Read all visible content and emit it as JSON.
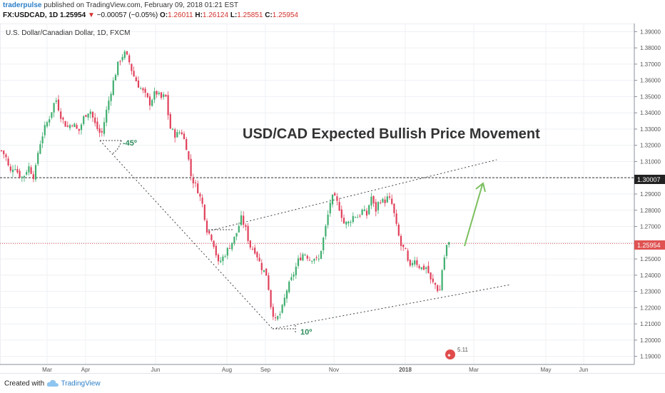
{
  "header": {
    "author": "traderpulse",
    "published_text": "published on TradingView.com, February 09, 2018 01:21 EST",
    "symbol": "FX:USDCAD, 1D",
    "last": "1.25954",
    "change": "−0.00057 (−0.05%)",
    "o_label": "O:",
    "o_val": "1.26011",
    "h_label": "H:",
    "h_val": "1.26124",
    "l_label": "L:",
    "l_val": "1.25851",
    "c_label": "C:",
    "c_val": "1.25954"
  },
  "chart_title_legend": "U.S. Dollar/Canadian Dollar, 1D, FXCM",
  "annotations": {
    "headline": "USD/CAD Expected Bullish Price Movement",
    "angle1": "-45º",
    "angle2": "10º",
    "event_label": "5.11",
    "price_tag_level": "1.30007",
    "price_tag_current": "1.25954"
  },
  "footer": {
    "created_with": "Created with",
    "brand": "TradingView"
  },
  "colors": {
    "up": "#3fae6f",
    "down": "#e0405a",
    "arrow": "#7bbf5e",
    "current_line": "#e05252",
    "level_line": "#333333"
  },
  "chart_data": {
    "type": "candlestick",
    "title": "U.S. Dollar/Canadian Dollar, 1D, FXCM",
    "x_ticks": [
      "Mar",
      "Apr",
      "Jun",
      "Aug",
      "Sep",
      "Nov",
      "2018",
      "Mar",
      "May",
      "Jun"
    ],
    "y_ticks": [
      "1.39000",
      "1.38000",
      "1.37000",
      "1.36000",
      "1.35000",
      "1.34000",
      "1.33000",
      "1.32000",
      "1.31000",
      "1.30000",
      "1.29000",
      "1.28000",
      "1.27000",
      "1.26000",
      "1.25000",
      "1.24000",
      "1.23000",
      "1.22000",
      "1.21000",
      "1.20000",
      "1.19000"
    ],
    "ylim": [
      1.185,
      1.395
    ],
    "grid": true,
    "price_path": [
      [
        0,
        1.318
      ],
      [
        8,
        1.313
      ],
      [
        14,
        1.303
      ],
      [
        20,
        1.308
      ],
      [
        26,
        1.302
      ],
      [
        32,
        1.3
      ],
      [
        40,
        1.307
      ],
      [
        48,
        1.3
      ],
      [
        54,
        1.318
      ],
      [
        62,
        1.33
      ],
      [
        70,
        1.338
      ],
      [
        78,
        1.349
      ],
      [
        86,
        1.337
      ],
      [
        94,
        1.331
      ],
      [
        102,
        1.334
      ],
      [
        110,
        1.328
      ],
      [
        118,
        1.338
      ],
      [
        126,
        1.342
      ],
      [
        134,
        1.332
      ],
      [
        142,
        1.326
      ],
      [
        150,
        1.343
      ],
      [
        158,
        1.358
      ],
      [
        166,
        1.371
      ],
      [
        174,
        1.377
      ],
      [
        180,
        1.373
      ],
      [
        186,
        1.364
      ],
      [
        194,
        1.357
      ],
      [
        202,
        1.352
      ],
      [
        210,
        1.346
      ],
      [
        218,
        1.353
      ],
      [
        226,
        1.349
      ],
      [
        232,
        1.351
      ],
      [
        238,
        1.331
      ],
      [
        246,
        1.326
      ],
      [
        254,
        1.329
      ],
      [
        262,
        1.318
      ],
      [
        268,
        1.3
      ],
      [
        276,
        1.294
      ],
      [
        284,
        1.283
      ],
      [
        290,
        1.268
      ],
      [
        298,
        1.262
      ],
      [
        306,
        1.247
      ],
      [
        314,
        1.252
      ],
      [
        322,
        1.258
      ],
      [
        330,
        1.264
      ],
      [
        338,
        1.275
      ],
      [
        344,
        1.269
      ],
      [
        350,
        1.258
      ],
      [
        358,
        1.255
      ],
      [
        366,
        1.245
      ],
      [
        374,
        1.24
      ],
      [
        380,
        1.22
      ],
      [
        386,
        1.212
      ],
      [
        394,
        1.217
      ],
      [
        402,
        1.231
      ],
      [
        410,
        1.239
      ],
      [
        418,
        1.249
      ],
      [
        426,
        1.254
      ],
      [
        434,
        1.25
      ],
      [
        440,
        1.251
      ],
      [
        446,
        1.248
      ],
      [
        452,
        1.26
      ],
      [
        458,
        1.273
      ],
      [
        464,
        1.288
      ],
      [
        470,
        1.287
      ],
      [
        476,
        1.281
      ],
      [
        482,
        1.272
      ],
      [
        488,
        1.272
      ],
      [
        496,
        1.277
      ],
      [
        502,
        1.276
      ],
      [
        508,
        1.28
      ],
      [
        514,
        1.277
      ],
      [
        520,
        1.289
      ],
      [
        526,
        1.279
      ],
      [
        532,
        1.287
      ],
      [
        538,
        1.285
      ],
      [
        544,
        1.288
      ],
      [
        550,
        1.283
      ],
      [
        556,
        1.269
      ],
      [
        562,
        1.258
      ],
      [
        568,
        1.255
      ],
      [
        574,
        1.243
      ],
      [
        580,
        1.251
      ],
      [
        586,
        1.246
      ],
      [
        592,
        1.244
      ],
      [
        598,
        1.245
      ],
      [
        604,
        1.236
      ],
      [
        610,
        1.234
      ],
      [
        616,
        1.229
      ],
      [
        620,
        1.245
      ],
      [
        626,
        1.258
      ],
      [
        632,
        1.26
      ]
    ],
    "levels": [
      {
        "value": 1.30007,
        "style": "dashed"
      },
      {
        "value": 1.25954,
        "style": "dotted",
        "role": "current"
      }
    ]
  }
}
